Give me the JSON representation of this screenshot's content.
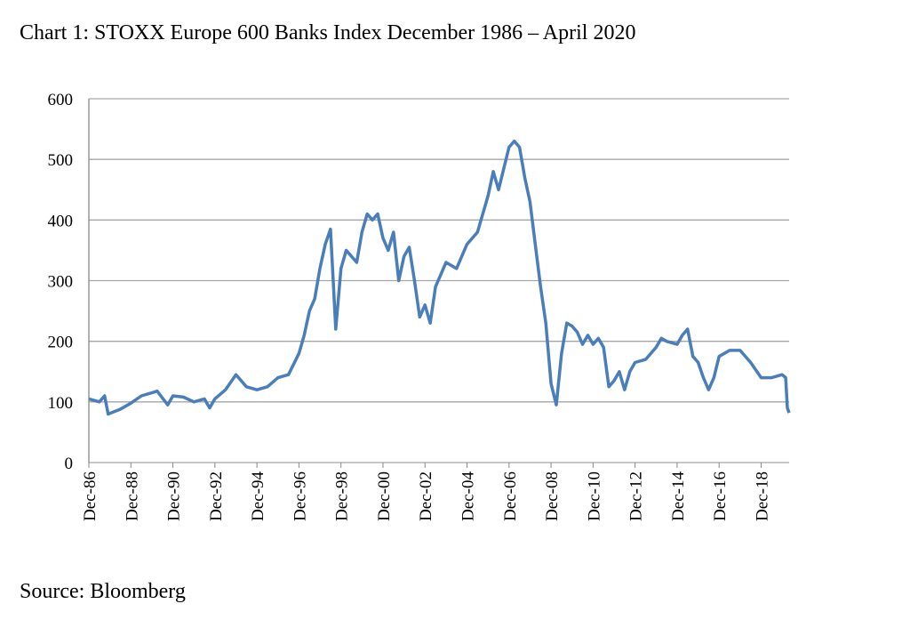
{
  "chart_data": {
    "type": "line",
    "title": "Chart 1: STOXX Europe 600 Banks Index December 1986 – April 2020",
    "source": "Source: Bloomberg",
    "xlim": [
      "1986-12",
      "2020-04"
    ],
    "xticks": [
      {
        "value": "1986-12",
        "label": "Dec-86"
      },
      {
        "value": "1988-12",
        "label": "Dec-88"
      },
      {
        "value": "1990-12",
        "label": "Dec-90"
      },
      {
        "value": "1992-12",
        "label": "Dec-92"
      },
      {
        "value": "1994-12",
        "label": "Dec-94"
      },
      {
        "value": "1996-12",
        "label": "Dec-96"
      },
      {
        "value": "1998-12",
        "label": "Dec-98"
      },
      {
        "value": "2000-12",
        "label": "Dec-00"
      },
      {
        "value": "2002-12",
        "label": "Dec-02"
      },
      {
        "value": "2004-12",
        "label": "Dec-04"
      },
      {
        "value": "2006-12",
        "label": "Dec-06"
      },
      {
        "value": "2008-12",
        "label": "Dec-08"
      },
      {
        "value": "2010-12",
        "label": "Dec-10"
      },
      {
        "value": "2012-12",
        "label": "Dec-12"
      },
      {
        "value": "2014-12",
        "label": "Dec-14"
      },
      {
        "value": "2016-12",
        "label": "Dec-16"
      },
      {
        "value": "2018-12",
        "label": "Dec-18"
      }
    ],
    "ylim": [
      0,
      600
    ],
    "yticks": [
      0,
      100,
      200,
      300,
      400,
      500,
      600
    ],
    "grid": true,
    "x": [
      "1986-12",
      "1987-06",
      "1987-09",
      "1987-11",
      "1988-06",
      "1988-12",
      "1989-06",
      "1989-12",
      "1990-03",
      "1990-09",
      "1990-12",
      "1991-06",
      "1991-12",
      "1992-06",
      "1992-09",
      "1992-12",
      "1993-06",
      "1993-12",
      "1994-06",
      "1994-12",
      "1995-06",
      "1995-12",
      "1996-06",
      "1996-12",
      "1997-03",
      "1997-06",
      "1997-09",
      "1997-12",
      "1998-03",
      "1998-06",
      "1998-09",
      "1998-12",
      "1999-03",
      "1999-06",
      "1999-09",
      "1999-12",
      "2000-03",
      "2000-06",
      "2000-09",
      "2000-12",
      "2001-03",
      "2001-06",
      "2001-09",
      "2001-12",
      "2002-03",
      "2002-06",
      "2002-09",
      "2002-12",
      "2003-03",
      "2003-06",
      "2003-09",
      "2003-12",
      "2004-06",
      "2004-12",
      "2005-06",
      "2005-12",
      "2006-03",
      "2006-06",
      "2006-12",
      "2007-03",
      "2007-06",
      "2007-09",
      "2007-12",
      "2008-03",
      "2008-06",
      "2008-09",
      "2008-12",
      "2009-03",
      "2009-06",
      "2009-09",
      "2009-12",
      "2010-03",
      "2010-06",
      "2010-09",
      "2010-12",
      "2011-03",
      "2011-06",
      "2011-09",
      "2011-12",
      "2012-03",
      "2012-06",
      "2012-09",
      "2012-12",
      "2013-06",
      "2013-12",
      "2014-03",
      "2014-06",
      "2014-12",
      "2015-03",
      "2015-06",
      "2015-09",
      "2015-12",
      "2016-03",
      "2016-06",
      "2016-09",
      "2016-12",
      "2017-06",
      "2017-12",
      "2018-06",
      "2018-12",
      "2019-06",
      "2019-12",
      "2020-02",
      "2020-03",
      "2020-04"
    ],
    "series": [
      {
        "name": "STOXX Europe 600 Banks",
        "color": "#4a7ebb",
        "values": [
          105,
          100,
          110,
          80,
          88,
          98,
          110,
          115,
          118,
          95,
          110,
          108,
          100,
          105,
          90,
          105,
          120,
          145,
          125,
          120,
          125,
          140,
          145,
          180,
          210,
          250,
          270,
          320,
          360,
          385,
          220,
          320,
          350,
          340,
          330,
          380,
          410,
          400,
          410,
          370,
          350,
          380,
          300,
          340,
          355,
          300,
          240,
          260,
          230,
          290,
          310,
          330,
          320,
          360,
          380,
          440,
          480,
          450,
          520,
          530,
          520,
          470,
          430,
          360,
          290,
          230,
          130,
          95,
          180,
          230,
          225,
          215,
          195,
          210,
          195,
          205,
          190,
          125,
          135,
          150,
          120,
          150,
          165,
          170,
          190,
          205,
          200,
          195,
          210,
          220,
          175,
          165,
          140,
          120,
          140,
          175,
          185,
          185,
          165,
          140,
          140,
          145,
          140,
          90,
          82
        ]
      }
    ]
  }
}
